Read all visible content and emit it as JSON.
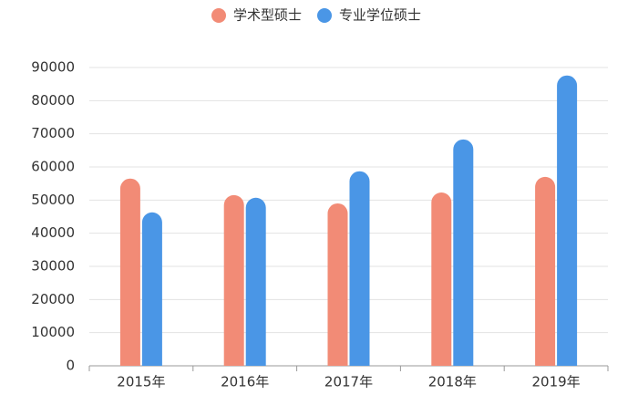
{
  "chart_data": {
    "type": "bar",
    "categories": [
      "2015年",
      "2016年",
      "2017年",
      "2018年",
      "2019年"
    ],
    "series": [
      {
        "name": "学术型硕士",
        "color": "#f28b76",
        "values": [
          56500,
          51500,
          49000,
          52300,
          57000
        ]
      },
      {
        "name": "专业学位硕士",
        "color": "#4a96e6",
        "values": [
          46300,
          50700,
          58700,
          68300,
          87600
        ]
      }
    ],
    "ylim": [
      0,
      90000
    ],
    "yticks": [
      0,
      10000,
      20000,
      30000,
      40000,
      50000,
      60000,
      70000,
      80000,
      90000
    ],
    "grid": true
  }
}
